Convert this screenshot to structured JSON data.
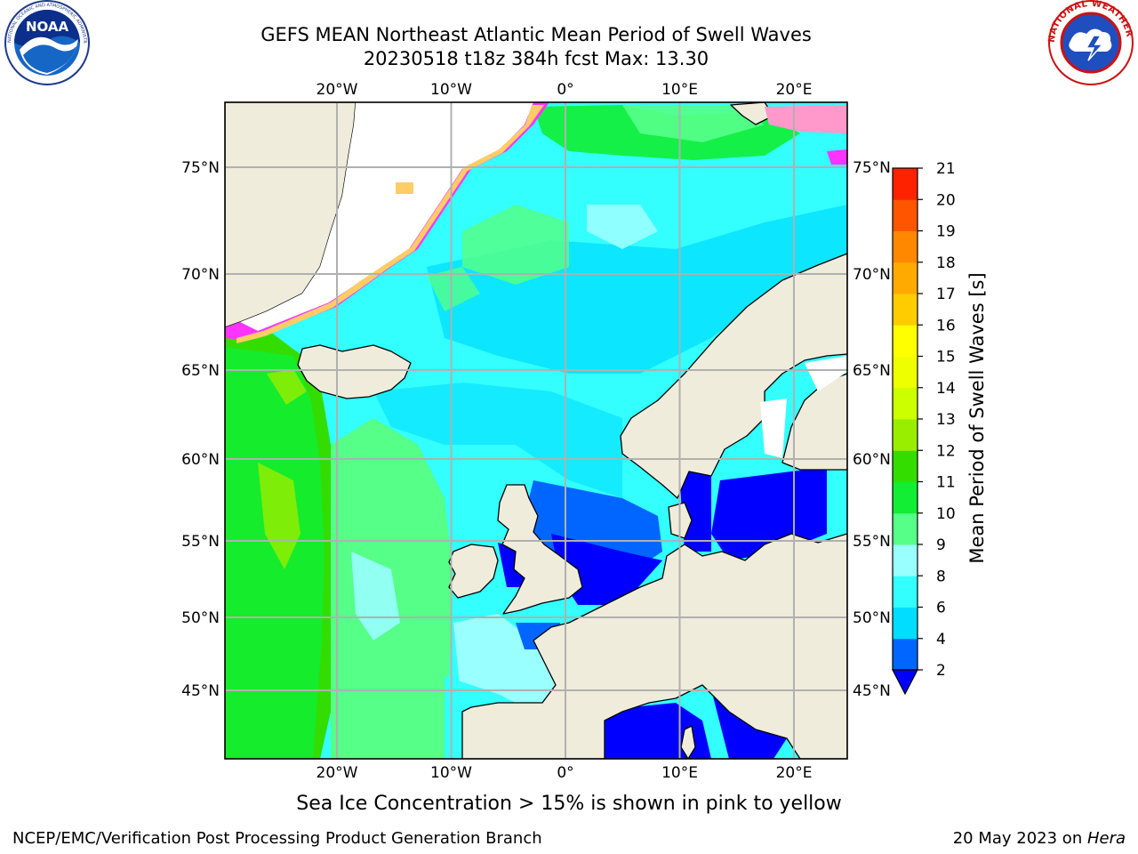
{
  "title": "GEFS MEAN Northeast Atlantic Mean Period of Swell Waves",
  "subtitle": "20230518 t18z 384h fcst   Max: 13.30",
  "footnote": "Sea Ice Concentration > 15% is shown in pink to yellow",
  "credit": "NCEP/EMC/Verification Post Processing Product Generation Branch",
  "date_prefix": "20 May 2023 on ",
  "date_host": "Hera",
  "logos": {
    "left": {
      "name": "noaa-logo",
      "text": "NOAA",
      "ring": "NATIONAL OCEANIC AND ATMOSPHERIC ADMINISTRATION · U.S. DEPARTMENT OF COMMERCE"
    },
    "right": {
      "name": "nws-logo",
      "ring": "NATIONAL WEATHER SERVICE"
    }
  },
  "map": {
    "lon_range": [
      -30,
      25
    ],
    "lat_range": [
      41,
      78
    ],
    "lon_ticks": [
      -20,
      -10,
      0,
      10,
      20
    ],
    "lon_labels": [
      "20°W",
      "10°W",
      "0°",
      "10°E",
      "20°E"
    ],
    "lat_ticks": [
      45,
      50,
      55,
      60,
      65,
      70,
      75
    ],
    "lat_labels": [
      "45°N",
      "50°N",
      "55°N",
      "60°N",
      "65°N",
      "70°N",
      "75°N"
    ],
    "grid": true,
    "land_color": "#efecdc",
    "ice_colors": [
      "#ff33ff",
      "#ff9999",
      "#ffcc66",
      "#ffff66"
    ]
  },
  "colorbar": {
    "label": "Mean Period of Swell Waves [s]",
    "levels": [
      2,
      4,
      6,
      8,
      9,
      10,
      11,
      12,
      13,
      14,
      15,
      16,
      17,
      18,
      19,
      20,
      21
    ],
    "colors": [
      "#0066ff",
      "#00ddff",
      "#33ffff",
      "#99ffff",
      "#55ff88",
      "#11ee33",
      "#33dd00",
      "#99ee00",
      "#ccff00",
      "#eeff00",
      "#ffff00",
      "#ffcc00",
      "#ffaa00",
      "#ff8800",
      "#ff5500",
      "#ff2200"
    ],
    "under_color": "#0000ff",
    "extend": "min"
  }
}
